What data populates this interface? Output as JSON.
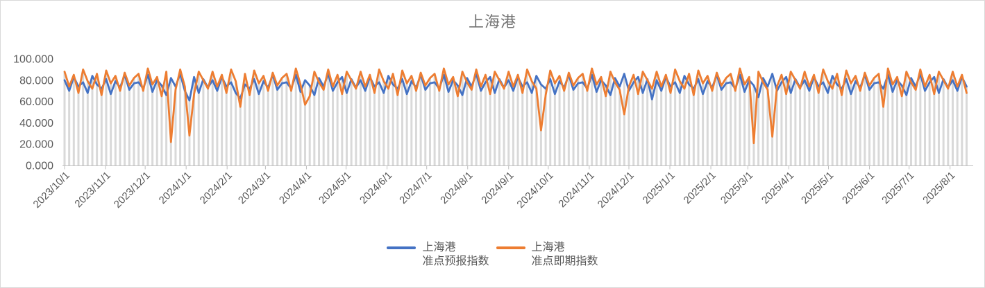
{
  "chart_data": {
    "type": "line",
    "title": "上海港",
    "x_start_date": "2023/10/1",
    "point_interval_days": 3.5,
    "ylim": [
      0,
      100
    ],
    "grid": "vertical-drop-lines",
    "legend_position": "bottom",
    "colors": {
      "drop_line": "#D9D9D9",
      "axis": "#BFBFBF",
      "tick_label": "#595959",
      "title": "#737373",
      "frame_border": "#D9D9D9"
    },
    "y_ticks": [
      {
        "label": "100.000",
        "value": 100
      },
      {
        "label": "80.000",
        "value": 80
      },
      {
        "label": "60.000",
        "value": 60
      },
      {
        "label": "40.000",
        "value": 40
      },
      {
        "label": "20.000",
        "value": 20
      },
      {
        "label": "0.000",
        "value": 0
      }
    ],
    "x_ticks": [
      {
        "label": "2023/10/1",
        "day": 0
      },
      {
        "label": "2023/11/1",
        "day": 31
      },
      {
        "label": "2023/12/1",
        "day": 61
      },
      {
        "label": "2024/1/1",
        "day": 92
      },
      {
        "label": "2024/2/1",
        "day": 123
      },
      {
        "label": "2024/3/1",
        "day": 152
      },
      {
        "label": "2024/4/1",
        "day": 183
      },
      {
        "label": "2024/5/1",
        "day": 213
      },
      {
        "label": "2024/6/1",
        "day": 244
      },
      {
        "label": "2024/7/1",
        "day": 274
      },
      {
        "label": "2024/8/1",
        "day": 305
      },
      {
        "label": "2024/9/1",
        "day": 336
      },
      {
        "label": "2024/10/1",
        "day": 366
      },
      {
        "label": "2024/11/1",
        "day": 397
      },
      {
        "label": "2024/12/1",
        "day": 427
      },
      {
        "label": "2025/1/1",
        "day": 458
      },
      {
        "label": "2025/2/1",
        "day": 489
      },
      {
        "label": "2025/3/1",
        "day": 517
      },
      {
        "label": "2025/4/1",
        "day": 548
      },
      {
        "label": "2025/5/1",
        "day": 578
      },
      {
        "label": "2025/6/1",
        "day": 609
      },
      {
        "label": "2025/7/1",
        "day": 639
      },
      {
        "label": "2025/8/1",
        "day": 670
      }
    ],
    "series": [
      {
        "id": "forecast",
        "name": "上海港准点预报指数",
        "name_line1": "上海港",
        "name_line2": "准点预报指数",
        "color": "#4472C4",
        "values": [
          80,
          70,
          83,
          74,
          78,
          68,
          84,
          76,
          72,
          81,
          67,
          79,
          73,
          85,
          71,
          77,
          78,
          72,
          85,
          69,
          80,
          75,
          66,
          82,
          74,
          86,
          70,
          61,
          83,
          68,
          81,
          73,
          80,
          70,
          83,
          74,
          78,
          68,
          63,
          76,
          72,
          81,
          67,
          79,
          73,
          85,
          71,
          77,
          78,
          72,
          85,
          69,
          80,
          75,
          66,
          82,
          74,
          86,
          70,
          78,
          83,
          68,
          81,
          73,
          80,
          70,
          83,
          74,
          78,
          68,
          84,
          76,
          72,
          81,
          67,
          79,
          73,
          85,
          71,
          77,
          78,
          72,
          85,
          69,
          80,
          75,
          66,
          82,
          74,
          86,
          70,
          78,
          83,
          68,
          81,
          73,
          80,
          70,
          83,
          74,
          78,
          68,
          84,
          76,
          72,
          81,
          67,
          79,
          73,
          85,
          71,
          77,
          78,
          72,
          85,
          69,
          80,
          75,
          66,
          82,
          74,
          86,
          70,
          78,
          83,
          68,
          81,
          62,
          80,
          70,
          83,
          74,
          78,
          68,
          84,
          76,
          72,
          81,
          67,
          79,
          73,
          85,
          71,
          77,
          78,
          72,
          85,
          69,
          80,
          75,
          64,
          82,
          74,
          86,
          70,
          78,
          83,
          68,
          81,
          73,
          80,
          70,
          83,
          74,
          78,
          68,
          84,
          76,
          72,
          81,
          67,
          79,
          73,
          85,
          71,
          77,
          78,
          72,
          85,
          69,
          80,
          75,
          66,
          82,
          74,
          86,
          70,
          78,
          83,
          68,
          81,
          73,
          80,
          70,
          83,
          74
        ]
      },
      {
        "id": "spot",
        "name": "上海港准点即期指数",
        "name_line1": "上海港",
        "name_line2": "准点即期指数",
        "color": "#ED7D31",
        "values": [
          88,
          74,
          85,
          68,
          90,
          79,
          72,
          86,
          66,
          89,
          77,
          84,
          70,
          87,
          75,
          82,
          86,
          70,
          91,
          76,
          83,
          65,
          88,
          22,
          71,
          90,
          74,
          28,
          67,
          88,
          80,
          72,
          88,
          74,
          85,
          68,
          90,
          79,
          55,
          86,
          66,
          89,
          77,
          84,
          70,
          87,
          75,
          82,
          86,
          70,
          91,
          76,
          57,
          65,
          88,
          78,
          71,
          90,
          74,
          85,
          67,
          88,
          80,
          72,
          88,
          74,
          85,
          68,
          90,
          79,
          72,
          86,
          66,
          89,
          77,
          84,
          70,
          87,
          75,
          82,
          86,
          70,
          91,
          76,
          83,
          65,
          88,
          78,
          71,
          90,
          74,
          85,
          67,
          88,
          80,
          72,
          88,
          74,
          85,
          68,
          90,
          79,
          72,
          33,
          66,
          89,
          77,
          84,
          70,
          87,
          75,
          82,
          86,
          70,
          91,
          76,
          83,
          65,
          88,
          78,
          71,
          48,
          74,
          85,
          67,
          88,
          80,
          72,
          88,
          74,
          85,
          68,
          90,
          79,
          72,
          86,
          66,
          89,
          77,
          84,
          70,
          87,
          75,
          82,
          86,
          70,
          91,
          76,
          83,
          21,
          88,
          78,
          71,
          27,
          74,
          85,
          67,
          88,
          80,
          72,
          88,
          74,
          85,
          68,
          90,
          79,
          72,
          86,
          66,
          89,
          77,
          84,
          70,
          87,
          75,
          82,
          86,
          55,
          91,
          76,
          83,
          65,
          88,
          78,
          71,
          90,
          74,
          85,
          67,
          88,
          80,
          72,
          88,
          74,
          85,
          68
        ]
      }
    ]
  }
}
